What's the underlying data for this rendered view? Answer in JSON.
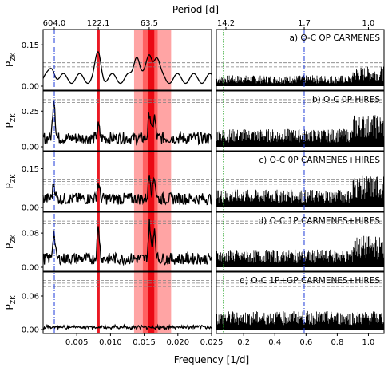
{
  "chart_data": {
    "type": "line",
    "top_axis_label": "Period [d]",
    "xlabel": "Frequency [1/d]",
    "ylabel": "P",
    "ylabel_sub": "ZK",
    "top_ticks_left": [
      "604.0",
      "122.1",
      "63.5"
    ],
    "top_ticks_right": [
      "14.2",
      "1.7",
      "1.0"
    ],
    "left_xlim": [
      0.0,
      0.025
    ],
    "right_xlim": [
      0.025,
      1.1
    ],
    "left_xticks": [
      "0.005",
      "0.010",
      "0.015",
      "0.020",
      "0.025"
    ],
    "right_xticks": [
      "0.2",
      "0.4",
      "0.6",
      "0.8",
      "1.0"
    ],
    "vlines": {
      "blue_dashdot": [
        0.00166,
        0.588
      ],
      "green_dotted": [
        0.0704
      ]
    },
    "shaded_bands": [
      {
        "from": 0.008,
        "to": 0.0084,
        "color": "#e8000b"
      },
      {
        "from": 0.0135,
        "to": 0.019,
        "color": "#ff9a9a"
      },
      {
        "from": 0.0148,
        "to": 0.017,
        "color": "#ff5a5a"
      },
      {
        "from": 0.0156,
        "to": 0.0165,
        "color": "#e8000b"
      }
    ],
    "panels": [
      {
        "label": "a) O-C OP CARMENES",
        "yticks": [
          "0.00",
          "0.15"
        ],
        "ymax": 0.2,
        "fap": [
          0.085,
          0.077,
          0.07
        ],
        "peaks": [
          [
            0.0014,
            0.06
          ],
          [
            0.0082,
            0.105
          ],
          [
            0.0139,
            0.115
          ],
          [
            0.0158,
            0.105
          ],
          [
            0.0168,
            0.095
          ]
        ]
      },
      {
        "label": "b) O-C 0P HIRES",
        "yticks": [
          "0.00",
          "0.25"
        ],
        "ymax": 0.38,
        "fap": [
          0.35,
          0.33,
          0.31
        ],
        "peaks": [
          [
            0.0016,
            0.33
          ],
          [
            0.0082,
            0.12
          ],
          [
            0.0158,
            0.22
          ],
          [
            0.0165,
            0.19
          ]
        ]
      },
      {
        "label": "c) O-C 0P CARMENES+HIRES",
        "yticks": [
          "0.00",
          "0.15"
        ],
        "ymax": 0.21,
        "fap": [
          0.11,
          0.1,
          0.09
        ],
        "peaks": [
          [
            0.0016,
            0.08
          ],
          [
            0.0082,
            0.08
          ],
          [
            0.0158,
            0.12
          ],
          [
            0.0165,
            0.11
          ]
        ]
      },
      {
        "label": "d) O-C 1P CARMENES+HIRES",
        "yticks": [
          "0.00",
          "0.08"
        ],
        "ymax": 0.125,
        "fap": [
          0.113,
          0.108,
          0.102
        ],
        "peaks": [
          [
            0.0016,
            0.075
          ],
          [
            0.0082,
            0.085
          ],
          [
            0.0158,
            0.095
          ],
          [
            0.0165,
            0.085
          ]
        ]
      },
      {
        "label": "d) O-C 1P+GP CARMENES+HIRES",
        "yticks": [
          "0.00",
          "0.06"
        ],
        "ymax": 0.1,
        "fap": [
          0.088,
          0.083,
          0.077
        ],
        "peaks": [
          [
            0.0082,
            0.006
          ],
          [
            0.0158,
            0.01
          ]
        ]
      }
    ]
  }
}
